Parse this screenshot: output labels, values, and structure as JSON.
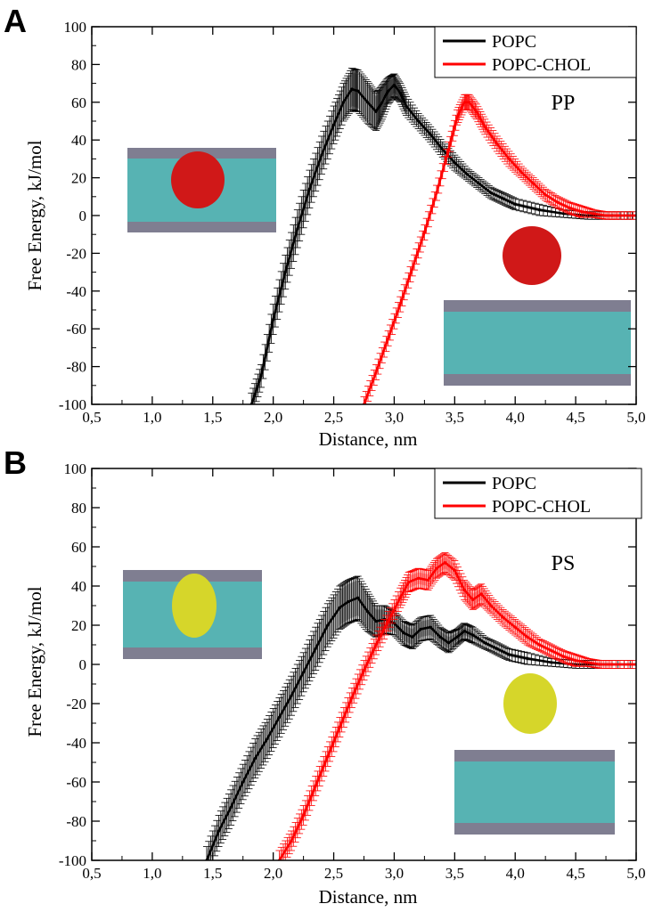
{
  "chart_data": [
    {
      "type": "line",
      "panel_letter": "A",
      "tag": "PP",
      "xlabel": "Distance, nm",
      "ylabel": "Free Energy, kJ/mol",
      "xlim": [
        0.5,
        5.0
      ],
      "ylim": [
        -100,
        100
      ],
      "xticks": [
        "0,5",
        "1,0",
        "1,5",
        "2,0",
        "2,5",
        "3,0",
        "3,5",
        "4,0",
        "4,5",
        "5,0"
      ],
      "yticks": [
        "-100",
        "-80",
        "-60",
        "-40",
        "-20",
        "0",
        "20",
        "40",
        "60",
        "80",
        "100"
      ],
      "legend_position": "top-right",
      "series": [
        {
          "name": "POPC",
          "color": "#000000",
          "x": [
            1.82,
            1.9,
            2.0,
            2.1,
            2.2,
            2.3,
            2.4,
            2.5,
            2.58,
            2.65,
            2.7,
            2.78,
            2.85,
            2.9,
            2.95,
            3.0,
            3.05,
            3.1,
            3.2,
            3.3,
            3.4,
            3.5,
            3.6,
            3.7,
            3.8,
            3.9,
            4.0,
            4.2,
            4.4,
            4.6,
            4.8,
            5.0
          ],
          "y": [
            -100,
            -85,
            -55,
            -30,
            -7,
            14,
            32,
            48,
            60,
            67,
            66,
            60,
            55,
            60,
            66,
            69,
            65,
            58,
            50,
            43,
            35,
            28,
            22,
            17,
            12,
            9,
            6,
            3,
            1,
            0,
            0,
            0
          ],
          "err": [
            4,
            4,
            6,
            7,
            8,
            8,
            8,
            8,
            8,
            9,
            9,
            9,
            8,
            7,
            5,
            4,
            3,
            3,
            2,
            2,
            2,
            2,
            1,
            1,
            1,
            1,
            1,
            1,
            0,
            0,
            0,
            0
          ]
        },
        {
          "name": "POPC-CHOL",
          "color": "#ff0000",
          "x": [
            2.75,
            2.85,
            2.95,
            3.05,
            3.15,
            3.25,
            3.35,
            3.45,
            3.52,
            3.58,
            3.62,
            3.68,
            3.75,
            3.85,
            3.95,
            4.05,
            4.15,
            4.25,
            4.35,
            4.45,
            4.55,
            4.65,
            4.75,
            4.85,
            5.0
          ],
          "y": [
            -100,
            -83,
            -65,
            -47,
            -28,
            -9,
            12,
            35,
            52,
            60,
            60,
            55,
            47,
            38,
            30,
            23,
            17,
            11,
            7,
            4,
            2,
            1,
            0,
            0,
            0
          ],
          "err": [
            2,
            2,
            2,
            2,
            2,
            2,
            2,
            2,
            2,
            2,
            2,
            2,
            2,
            2,
            2,
            1,
            1,
            1,
            1,
            1,
            1,
            0,
            0,
            0,
            0
          ]
        }
      ]
    },
    {
      "type": "line",
      "panel_letter": "B",
      "tag": "PS",
      "xlabel": "Distance, nm",
      "ylabel": "Free Energy, kJ/mol",
      "xlim": [
        0.5,
        5.0
      ],
      "ylim": [
        -100,
        100
      ],
      "xticks": [
        "0,5",
        "1,0",
        "1,5",
        "2,0",
        "2,5",
        "3,0",
        "3,5",
        "4,0",
        "4,5",
        "5,0"
      ],
      "yticks": [
        "-100",
        "-80",
        "-60",
        "-40",
        "-20",
        "0",
        "20",
        "40",
        "60",
        "80",
        "100"
      ],
      "legend_position": "top-right",
      "series": [
        {
          "name": "POPC",
          "color": "#000000",
          "x": [
            1.45,
            1.55,
            1.65,
            1.75,
            1.85,
            1.95,
            2.05,
            2.15,
            2.25,
            2.35,
            2.45,
            2.55,
            2.62,
            2.7,
            2.78,
            2.85,
            2.92,
            3.0,
            3.08,
            3.15,
            3.22,
            3.3,
            3.38,
            3.45,
            3.52,
            3.58,
            3.65,
            3.75,
            3.85,
            3.95,
            4.1,
            4.3,
            4.5,
            4.7,
            5.0
          ],
          "y": [
            -100,
            -85,
            -73,
            -60,
            -48,
            -38,
            -27,
            -16,
            -4,
            8,
            20,
            29,
            32,
            34,
            27,
            22,
            23,
            21,
            16,
            14,
            18,
            19,
            14,
            11,
            14,
            17,
            15,
            11,
            8,
            5,
            3,
            1,
            0,
            0,
            0
          ],
          "err": [
            5,
            6,
            7,
            7,
            8,
            8,
            8,
            8,
            8,
            9,
            9,
            9,
            9,
            9,
            8,
            6,
            5,
            4,
            4,
            4,
            4,
            4,
            3,
            3,
            2,
            2,
            2,
            1,
            1,
            1,
            1,
            0,
            0,
            0,
            0
          ]
        },
        {
          "name": "POPC-CHOL",
          "color": "#ff0000",
          "x": [
            2.05,
            2.15,
            2.25,
            2.35,
            2.45,
            2.55,
            2.65,
            2.75,
            2.85,
            2.95,
            3.05,
            3.12,
            3.2,
            3.28,
            3.35,
            3.42,
            3.5,
            3.58,
            3.65,
            3.72,
            3.8,
            3.9,
            4.0,
            4.1,
            4.2,
            4.3,
            4.4,
            4.5,
            4.6,
            4.7,
            4.8,
            5.0
          ],
          "y": [
            -100,
            -90,
            -77,
            -62,
            -47,
            -32,
            -17,
            -3,
            10,
            22,
            34,
            42,
            44,
            43,
            49,
            52,
            48,
            38,
            33,
            36,
            30,
            24,
            19,
            14,
            10,
            7,
            4,
            2,
            1,
            0,
            0,
            0
          ],
          "err": [
            3,
            3,
            3,
            3,
            3,
            3,
            3,
            3,
            3,
            3,
            3,
            3,
            3,
            3,
            3,
            3,
            3,
            3,
            3,
            3,
            2,
            2,
            2,
            2,
            1,
            1,
            1,
            1,
            0,
            0,
            0,
            0
          ]
        }
      ]
    }
  ],
  "colors": {
    "popc": "#000000",
    "popc_chol": "#ff0000",
    "membrane": "#3aa6a6",
    "protein_pp": "#d01818",
    "protein_ps": "#d6d62a"
  }
}
